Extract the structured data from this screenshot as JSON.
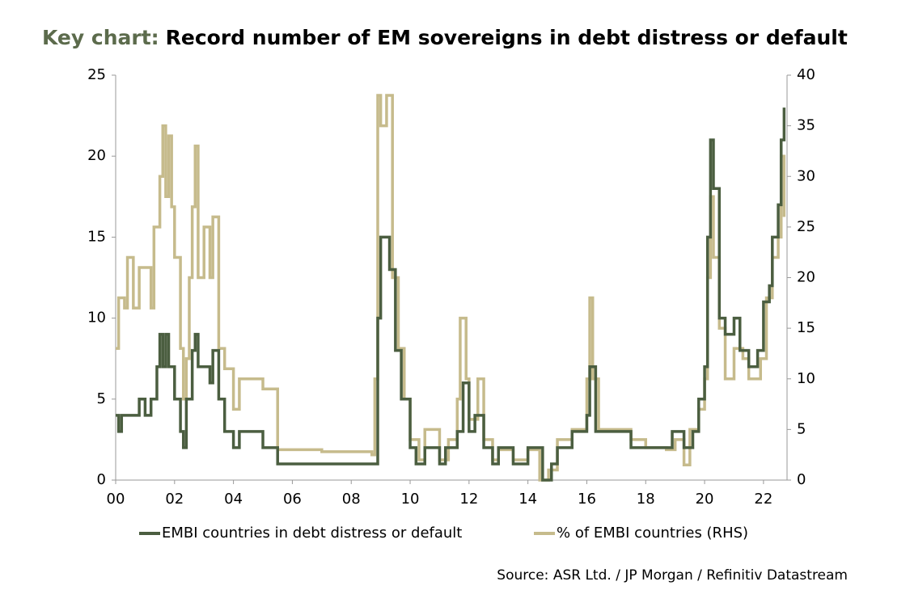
{
  "chart_data": {
    "type": "line",
    "title_prefix": "Key chart:",
    "title": "Record number of EM sovereigns in debt distress or default",
    "source": "Source: ASR Ltd. / JP Morgan / Refinitiv Datastream",
    "step": true,
    "xlim": [
      2000,
      2022.8
    ],
    "xticks": [
      {
        "value": 2000,
        "label": "00"
      },
      {
        "value": 2002,
        "label": "02"
      },
      {
        "value": 2004,
        "label": "04"
      },
      {
        "value": 2006,
        "label": "06"
      },
      {
        "value": 2008,
        "label": "08"
      },
      {
        "value": 2010,
        "label": "10"
      },
      {
        "value": 2012,
        "label": "12"
      },
      {
        "value": 2014,
        "label": "14"
      },
      {
        "value": 2016,
        "label": "16"
      },
      {
        "value": 2018,
        "label": "18"
      },
      {
        "value": 2020,
        "label": "20"
      },
      {
        "value": 2022,
        "label": "22"
      }
    ],
    "ylim": [
      0,
      25
    ],
    "yticks": [
      0,
      5,
      10,
      15,
      20,
      25
    ],
    "y2lim": [
      0,
      40
    ],
    "y2ticks": [
      0,
      5,
      10,
      15,
      20,
      25,
      30,
      35,
      40
    ],
    "series": [
      {
        "name": "EMBI countries in debt distress or default",
        "color": "#4b5e40",
        "axis": "y",
        "x": [
          2000.0,
          2000.1,
          2000.2,
          2000.8,
          2001.0,
          2001.2,
          2001.4,
          2001.5,
          2001.6,
          2001.7,
          2001.8,
          2002.0,
          2002.2,
          2002.3,
          2002.4,
          2002.6,
          2002.7,
          2002.8,
          2003.0,
          2003.2,
          2003.3,
          2003.5,
          2003.7,
          2004.0,
          2004.2,
          2004.5,
          2005.0,
          2005.5,
          2008.8,
          2008.9,
          2009.0,
          2009.3,
          2009.5,
          2009.7,
          2010.0,
          2010.2,
          2010.5,
          2011.0,
          2011.2,
          2011.6,
          2011.8,
          2012.0,
          2012.2,
          2012.5,
          2012.8,
          2013.0,
          2013.5,
          2014.0,
          2014.5,
          2014.8,
          2015.0,
          2015.5,
          2016.0,
          2016.1,
          2016.3,
          2017.5,
          2018.0,
          2018.9,
          2019.3,
          2019.6,
          2019.8,
          2020.0,
          2020.1,
          2020.2,
          2020.3,
          2020.5,
          2020.7,
          2021.0,
          2021.2,
          2021.5,
          2021.8,
          2022.0,
          2022.2,
          2022.3,
          2022.5,
          2022.6,
          2022.7
        ],
        "values": [
          4,
          3,
          4,
          5,
          4,
          5,
          7,
          9,
          7,
          9,
          7,
          5,
          3,
          2,
          5,
          8,
          9,
          7,
          7,
          6,
          8,
          5,
          3,
          2,
          3,
          3,
          2,
          1,
          1,
          10,
          15,
          13,
          8,
          5,
          2,
          1,
          2,
          1,
          2,
          3,
          6,
          3,
          4,
          2,
          1,
          2,
          1,
          2,
          0,
          1,
          2,
          3,
          4,
          7,
          3,
          2,
          2,
          3,
          2,
          3,
          5,
          7,
          15,
          21,
          18,
          10,
          9,
          10,
          8,
          7,
          8,
          11,
          12,
          15,
          17,
          21,
          23
        ]
      },
      {
        "name": "% of EMBI countries (RHS)",
        "color": "#c6bb8c",
        "axis": "y2",
        "x": [
          2000.0,
          2000.1,
          2000.3,
          2000.4,
          2000.6,
          2000.8,
          2001.2,
          2001.3,
          2001.5,
          2001.6,
          2001.7,
          2001.8,
          2001.9,
          2002.0,
          2002.2,
          2002.3,
          2002.4,
          2002.5,
          2002.6,
          2002.7,
          2002.8,
          2003.0,
          2003.2,
          2003.3,
          2003.5,
          2003.7,
          2004.0,
          2004.2,
          2004.6,
          2005.0,
          2005.5,
          2007.0,
          2008.7,
          2008.8,
          2008.9,
          2009.0,
          2009.2,
          2009.4,
          2009.6,
          2009.8,
          2010.0,
          2010.3,
          2010.5,
          2011.0,
          2011.3,
          2011.6,
          2011.7,
          2011.9,
          2012.0,
          2012.3,
          2012.5,
          2012.8,
          2013.0,
          2013.5,
          2014.0,
          2014.4,
          2014.7,
          2015.0,
          2015.5,
          2016.0,
          2016.1,
          2016.2,
          2016.4,
          2017.5,
          2018.0,
          2018.7,
          2019.0,
          2019.3,
          2019.5,
          2019.8,
          2020.0,
          2020.1,
          2020.2,
          2020.3,
          2020.5,
          2020.7,
          2021.0,
          2021.3,
          2021.5,
          2021.9,
          2022.1,
          2022.3,
          2022.5,
          2022.6,
          2022.7
        ],
        "values": [
          13,
          18,
          17,
          22,
          17,
          21,
          17,
          25,
          30,
          35,
          28,
          34,
          27,
          22,
          13,
          8,
          12,
          20,
          27,
          33,
          20,
          25,
          20,
          26,
          13,
          11,
          7,
          10,
          10,
          9,
          3,
          2.8,
          2.5,
          10,
          38,
          35,
          38,
          20,
          13,
          8,
          4,
          2,
          5,
          2,
          4,
          8,
          16,
          10,
          6,
          10,
          4,
          2,
          3,
          2,
          3,
          0,
          1,
          4,
          5,
          10,
          18,
          10,
          5,
          4,
          3.2,
          3,
          4,
          1.5,
          5,
          7,
          10,
          20,
          28,
          22,
          15,
          10,
          13,
          12,
          10,
          12,
          18,
          22,
          24,
          32,
          26
        ]
      }
    ]
  }
}
